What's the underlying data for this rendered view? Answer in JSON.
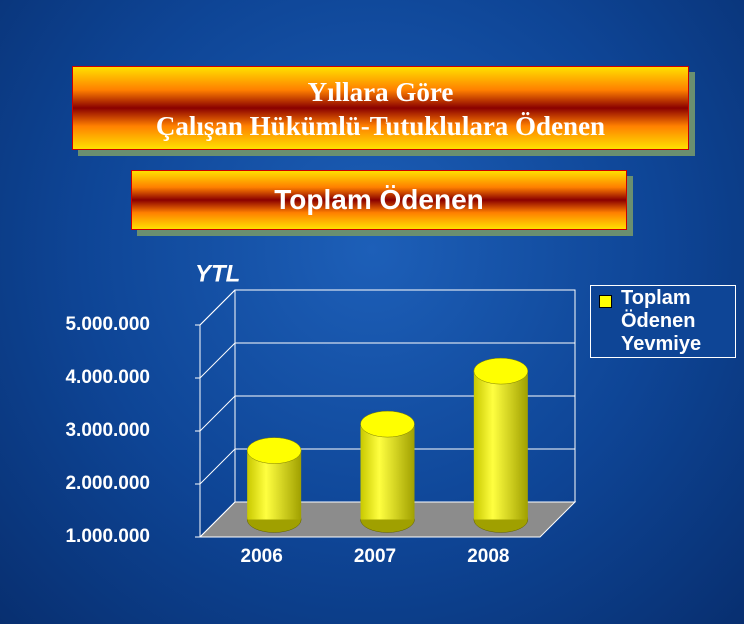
{
  "chart_data": {
    "type": "bar3d",
    "title": [
      "Yıllara Göre",
      "Çalışan Hükümlü-Tutuklulara Ödenen"
    ],
    "subtitle": "Toplam Ödenen",
    "y_label": "YTL",
    "categories": [
      "2006",
      "2007",
      "2008"
    ],
    "series": [
      {
        "name": "Toplam Ödenen Yevmiye",
        "color": "#ffff00",
        "values": [
          2300000,
          2800000,
          3800000
        ]
      }
    ],
    "ylim": [
      1000000,
      5000000
    ],
    "yticks": [
      {
        "value": 1000000,
        "label": "1.000.000"
      },
      {
        "value": 2000000,
        "label": "2.000.000"
      },
      {
        "value": 3000000,
        "label": "3.000.000"
      },
      {
        "value": 4000000,
        "label": "4.000.000"
      },
      {
        "value": 5000000,
        "label": "5.000.000"
      }
    ],
    "grid": true,
    "legend": "right"
  }
}
